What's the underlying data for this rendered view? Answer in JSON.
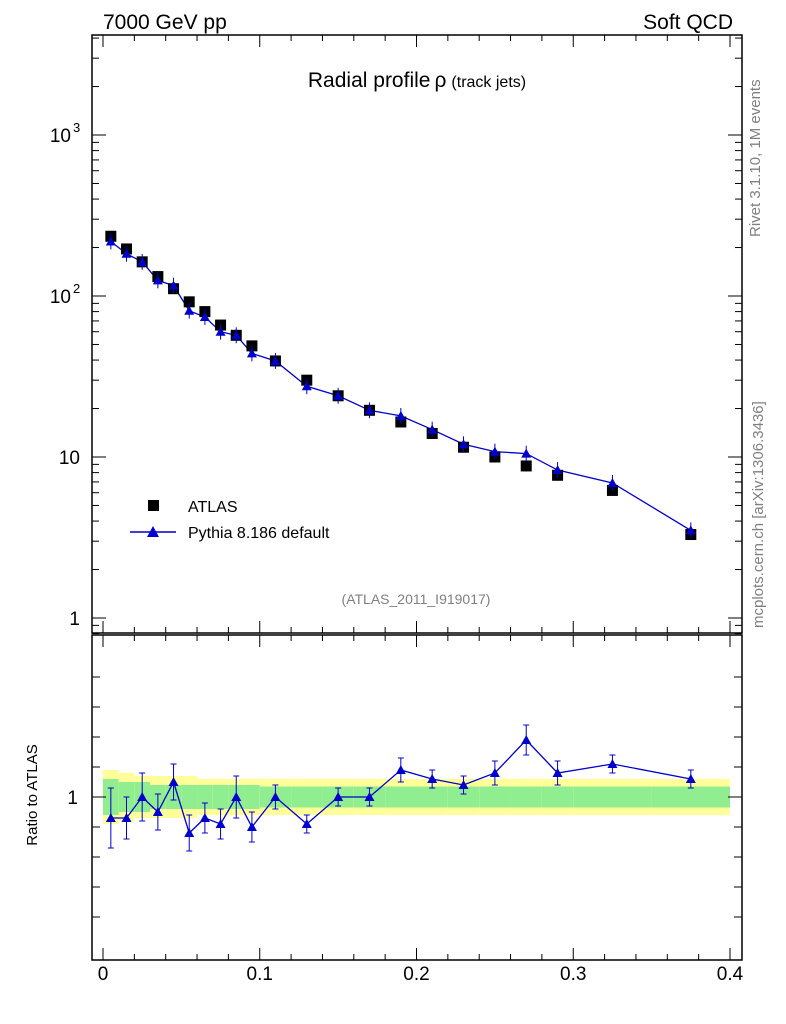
{
  "header": {
    "left": "7000 GeV pp",
    "right": "Soft QCD"
  },
  "side_labels": {
    "rivet": "Rivet 3.1.10,  1M events",
    "mcplots": "mcplots.cern.ch [arXiv:1306.3436]"
  },
  "chart_data": {
    "type": "scatter",
    "title": "Radial profile",
    "title_symbol": "ρ",
    "title_suffix": "(track jets)",
    "analysis_tag": "(ATLAS_2011_I919017)",
    "xlim": [
      0,
      0.4
    ],
    "ylim_main": [
      0.8,
      4000
    ],
    "yscale_main": "log",
    "x_ticks": [
      "0",
      "0.1",
      "0.2",
      "0.3",
      "0.4"
    ],
    "y_ticks_main": [
      "1",
      "10",
      "10²",
      "10³"
    ],
    "ratio_ylabel": "Ratio to ATLAS",
    "ratio_ylim": [
      0.5,
      1.5
    ],
    "ratio_ytick": "1",
    "legend_position": "middle-left",
    "x": [
      0.005,
      0.015,
      0.025,
      0.035,
      0.045,
      0.055,
      0.065,
      0.075,
      0.085,
      0.095,
      0.11,
      0.13,
      0.15,
      0.17,
      0.19,
      0.21,
      0.23,
      0.25,
      0.27,
      0.29,
      0.325,
      0.375
    ],
    "series": [
      {
        "name": "ATLAS",
        "marker": "square",
        "color": "#000000",
        "values": [
          235,
          196,
          163,
          132,
          111,
          92,
          80,
          66,
          57,
          49,
          39.5,
          30,
          24,
          19.5,
          16.5,
          14,
          11.5,
          10,
          8.8,
          7.7,
          6.2,
          3.3
        ]
      },
      {
        "name": "Pythia 8.186 default",
        "marker": "triangle",
        "color": "#0000cc",
        "values": [
          218,
          183,
          163,
          125,
          116,
          81,
          74,
          60,
          57,
          44,
          39.5,
          27.5,
          24,
          19.5,
          18,
          14.8,
          12,
          10.8,
          10.5,
          8.3,
          6.9,
          3.5
        ]
      }
    ],
    "ratio": {
      "pythia": [
        0.93,
        0.93,
        1.0,
        0.95,
        1.05,
        0.88,
        0.93,
        0.91,
        1.0,
        0.9,
        1.0,
        0.91,
        1.0,
        1.0,
        1.09,
        1.06,
        1.04,
        1.08,
        1.19,
        1.08,
        1.11,
        1.06
      ],
      "pythia_err": [
        0.1,
        0.07,
        0.08,
        0.06,
        0.06,
        0.06,
        0.05,
        0.05,
        0.07,
        0.05,
        0.04,
        0.03,
        0.03,
        0.03,
        0.04,
        0.03,
        0.03,
        0.04,
        0.05,
        0.04,
        0.03,
        0.03
      ],
      "band_inner": [
        0.06,
        0.05,
        0.05,
        0.04,
        0.04,
        0.04,
        0.04,
        0.04,
        0.04,
        0.04,
        0.035,
        0.035,
        0.035,
        0.035,
        0.035,
        0.035,
        0.035,
        0.035,
        0.035,
        0.035,
        0.035,
        0.035
      ],
      "band_outer": [
        0.09,
        0.08,
        0.07,
        0.07,
        0.07,
        0.07,
        0.06,
        0.06,
        0.06,
        0.06,
        0.06,
        0.06,
        0.06,
        0.06,
        0.06,
        0.06,
        0.06,
        0.06,
        0.06,
        0.06,
        0.06,
        0.06
      ],
      "band_edges": [
        0,
        0.01,
        0.02,
        0.03,
        0.04,
        0.05,
        0.06,
        0.07,
        0.08,
        0.09,
        0.1,
        0.12,
        0.14,
        0.16,
        0.18,
        0.2,
        0.22,
        0.24,
        0.26,
        0.28,
        0.3,
        0.35,
        0.4
      ]
    },
    "colors": {
      "band_inner": "#90ee90",
      "band_outer": "#ffff99",
      "pythia": "#0000cc",
      "atlas": "#000000"
    }
  }
}
